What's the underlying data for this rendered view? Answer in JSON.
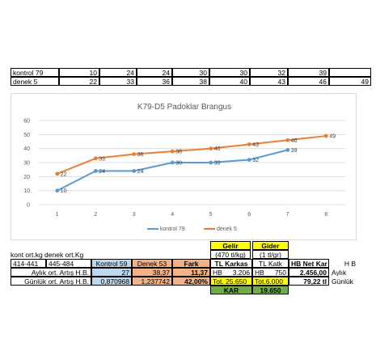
{
  "top_table": {
    "rows": [
      {
        "label": "kontrol 79",
        "values": [
          "10",
          "24",
          "24",
          "30",
          "30",
          "32",
          "39",
          ""
        ]
      },
      {
        "label": "denek 5",
        "values": [
          "22",
          "33",
          "36",
          "38",
          "40",
          "43",
          "46",
          "49"
        ]
      }
    ]
  },
  "chart_data": {
    "type": "line",
    "title": "K79-D5 Padoklar Brangus",
    "categories": [
      "1",
      "2",
      "3",
      "4",
      "5",
      "6",
      "7",
      "8"
    ],
    "series": [
      {
        "name": "kontrol 79",
        "color": "#5b9bd5",
        "values": [
          10,
          24,
          24,
          30,
          30,
          32,
          39,
          null
        ]
      },
      {
        "name": "denek 5",
        "color": "#ed7d31",
        "values": [
          22,
          33,
          36,
          38,
          40,
          43,
          46,
          49
        ]
      }
    ],
    "ylim": [
      0,
      60
    ],
    "yticks": [
      "0",
      "10",
      "20",
      "30",
      "40",
      "50",
      "60"
    ],
    "grid": true,
    "legend": "bottom"
  },
  "bottom": {
    "gelir_label": "Gelir",
    "gider_label": "Gider",
    "gelir_sub": "(470 tl/kg)",
    "gider_sub": "(1 tl/gr)",
    "kont_denek_caption": "kont ort.kg denek ort.Kg",
    "hdr": {
      "range1": "414-441",
      "range2": "445-484",
      "kontrol": "Kontrol 59",
      "denek": "Denek 53",
      "fark": "Fark",
      "tl_karkas": "TL Karkas",
      "tl_katk": "TL Katk",
      "hb_net": "HB Net Kar",
      "hb": "H B"
    },
    "row1": {
      "label": "Aylık ort. Artış H.B.",
      "kontrol": "27",
      "denek": "38,37",
      "fark": "11,37",
      "hb1": "HB",
      "karkas": "3.206",
      "hb2": "HB",
      "katk": "750",
      "net": "2.456,00",
      "unit": "Aylık"
    },
    "row2": {
      "label": "Günlük ort. Artış H.B.",
      "kontrol": "0,870968",
      "denek": "1,237742",
      "fark": "42,00%",
      "tot_gelir": "Tot. 25.650",
      "tot_gider": "Tot.6.000",
      "net": "79,22 tl",
      "unit": "Günlük"
    },
    "kar_label": "KAR",
    "kar_value": "19.650"
  },
  "colors": {
    "yellow": "#ffff00",
    "blue_fill": "#bdd7ee",
    "orange_fill": "#f4b183",
    "green_fill": "#70ad47",
    "kontrol_line": "#5b9bd5",
    "denek_line": "#ed7d31"
  }
}
